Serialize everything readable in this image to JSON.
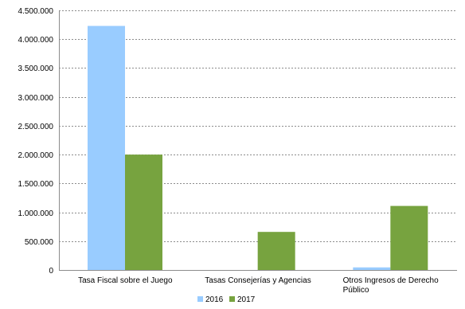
{
  "chart_data": {
    "type": "bar",
    "categories": [
      [
        "Tasa Fiscal sobre el Juego"
      ],
      [
        "Tasas Consejerías y Agencias"
      ],
      [
        "Otros Ingresos de Derecho",
        "Público"
      ]
    ],
    "series": [
      {
        "name": "2016",
        "color": "#99ccff",
        "values": [
          4230000,
          0,
          45000
        ]
      },
      {
        "name": "2017",
        "color": "#77a33f",
        "values": [
          2000000,
          660000,
          1110000
        ]
      }
    ],
    "ylim": [
      0,
      4500000
    ],
    "yticks": [
      0,
      500000,
      1000000,
      1500000,
      2000000,
      2500000,
      3000000,
      3500000,
      4000000,
      4500000
    ],
    "ytick_labels": [
      "0",
      "500.000",
      "1.000.000",
      "1.500.000",
      "2.000.000",
      "2.500.000",
      "3.000.000",
      "3.500.000",
      "4.000.000",
      "4.500.000"
    ],
    "grid": true,
    "legend_position": "bottom",
    "title": "",
    "xlabel": "",
    "ylabel": ""
  }
}
